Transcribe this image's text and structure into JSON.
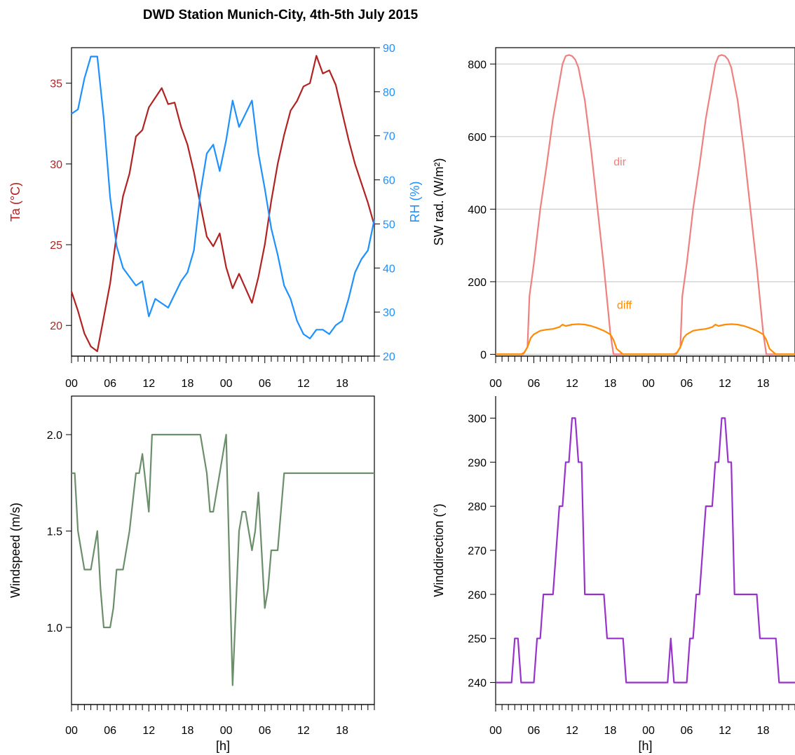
{
  "figure": {
    "title": "DWD Station Munich-City, 4th-5th July 2015"
  },
  "chart_data": [
    {
      "id": "temp-rh",
      "type": "line",
      "x_label": "",
      "x_ticks": [
        "00",
        "06",
        "12",
        "18",
        "00",
        "06",
        "12",
        "18"
      ],
      "x_tick_hours": [
        0,
        6,
        12,
        18,
        24,
        30,
        36,
        42
      ],
      "xlim": [
        0,
        47
      ],
      "y_left": {
        "label": "Ta (°C)",
        "ticks": [
          20,
          25,
          30,
          35
        ],
        "ylim": [
          18.1,
          37.2
        ],
        "color": "#b22222"
      },
      "y_right": {
        "label": "RH (%)",
        "ticks": [
          20,
          30,
          40,
          50,
          60,
          70,
          80,
          90
        ],
        "ylim": [
          20,
          90
        ],
        "color": "#1e90ff"
      },
      "series": [
        {
          "name": "Ta (°C)",
          "axis": "left",
          "color": "#b22222",
          "x": [
            0,
            1,
            2,
            3,
            4,
            5,
            6,
            7,
            8,
            9,
            10,
            11,
            12,
            13,
            14,
            15,
            16,
            17,
            18,
            19,
            20,
            21,
            22,
            23,
            24,
            25,
            26,
            27,
            28,
            29,
            30,
            31,
            32,
            33,
            34,
            35,
            36,
            37,
            38,
            39,
            40,
            41,
            42,
            43,
            44,
            45,
            46,
            47
          ],
          "y": [
            22.1,
            20.9,
            19.5,
            18.7,
            18.4,
            20.5,
            22.6,
            25.6,
            28.0,
            29.4,
            31.7,
            32.1,
            33.5,
            34.1,
            34.7,
            33.7,
            33.8,
            32.3,
            31.2,
            29.5,
            27.5,
            25.5,
            24.9,
            25.7,
            23.6,
            22.3,
            23.2,
            22.3,
            21.4,
            23.0,
            25.0,
            27.7,
            30.0,
            31.8,
            33.3,
            33.9,
            34.8,
            35.0,
            36.7,
            35.6,
            35.8,
            34.9,
            33.2,
            31.5,
            30.0,
            28.8,
            27.6,
            26.2
          ]
        },
        {
          "name": "RH (%)",
          "axis": "right",
          "color": "#1e90ff",
          "x": [
            0,
            1,
            2,
            3,
            4,
            5,
            6,
            7,
            8,
            9,
            10,
            11,
            12,
            13,
            14,
            15,
            16,
            17,
            18,
            19,
            20,
            21,
            22,
            23,
            24,
            25,
            26,
            27,
            28,
            29,
            30,
            31,
            32,
            33,
            34,
            35,
            36,
            37,
            38,
            39,
            40,
            41,
            42,
            43,
            44,
            45,
            46,
            47
          ],
          "y": [
            75,
            76,
            83,
            88,
            88,
            74,
            56,
            45,
            40,
            38,
            36,
            37,
            29,
            33,
            32,
            31,
            34,
            37,
            39,
            44,
            57,
            66,
            68,
            62,
            69,
            78,
            72,
            75,
            78,
            66,
            58,
            49,
            43,
            36,
            33,
            28,
            25,
            24,
            26,
            26,
            25,
            27,
            28,
            33,
            39,
            42,
            44,
            51
          ]
        }
      ]
    },
    {
      "id": "sw-radiation",
      "type": "line",
      "x_label": "",
      "x_ticks": [
        "00",
        "06",
        "12",
        "18",
        "00",
        "06",
        "12",
        "18"
      ],
      "x_tick_hours": [
        0,
        6,
        12,
        18,
        24,
        30,
        36,
        42
      ],
      "xlim": [
        0,
        47
      ],
      "y": {
        "label": "SW rad. (W/m²)",
        "ticks": [
          0,
          200,
          400,
          600,
          800
        ],
        "ylim": [
          -5,
          845
        ],
        "grid": [
          0,
          200,
          400,
          600,
          800
        ]
      },
      "annotations": [
        {
          "text": "dir",
          "x": 19.5,
          "y": 520,
          "color": "#f08080"
        },
        {
          "text": "diff",
          "x": 20.2,
          "y": 125,
          "color": "#ff8c00"
        }
      ],
      "series": [
        {
          "name": "dir",
          "color": "#f08080",
          "x": [
            0,
            4.3,
            5,
            5.3,
            6,
            7,
            8,
            9,
            10,
            10.5,
            11,
            11.5,
            12,
            12.5,
            13,
            14,
            15,
            16,
            17,
            18,
            18.5,
            19,
            20,
            24,
            28.3,
            29,
            29.3,
            30,
            31,
            32,
            33,
            34,
            34.5,
            35,
            35.5,
            36,
            36.5,
            37,
            38,
            39,
            40,
            41,
            42,
            42.5,
            43,
            47
          ],
          "y": [
            0,
            0,
            20,
            160,
            250,
            400,
            520,
            650,
            750,
            800,
            822,
            825,
            822,
            812,
            790,
            700,
            560,
            400,
            240,
            60,
            0,
            0,
            0,
            0,
            0,
            20,
            160,
            250,
            400,
            520,
            650,
            750,
            800,
            822,
            825,
            822,
            812,
            790,
            700,
            560,
            400,
            240,
            60,
            0,
            0,
            0
          ]
        },
        {
          "name": "diff",
          "color": "#ff8c00",
          "x": [
            0,
            4,
            4.5,
            5,
            5.5,
            6,
            7,
            8,
            9,
            10,
            10.5,
            11,
            12,
            13,
            14,
            15,
            16,
            17,
            18,
            18.5,
            19,
            20,
            24,
            28,
            28.5,
            29,
            29.5,
            30,
            31,
            32,
            33,
            34,
            34.5,
            35,
            36,
            37,
            38,
            39,
            40,
            41,
            42,
            42.5,
            43,
            44,
            47
          ],
          "y": [
            0,
            0,
            5,
            20,
            45,
            55,
            65,
            68,
            70,
            75,
            82,
            78,
            82,
            83,
            82,
            78,
            72,
            65,
            55,
            40,
            15,
            0,
            0,
            0,
            5,
            20,
            45,
            55,
            65,
            68,
            70,
            75,
            82,
            78,
            82,
            83,
            82,
            78,
            72,
            65,
            55,
            40,
            15,
            0,
            0
          ]
        }
      ]
    },
    {
      "id": "windspeed",
      "type": "line",
      "x_label": "[h]",
      "x_ticks": [
        "00",
        "06",
        "12",
        "18",
        "00",
        "06",
        "12",
        "18"
      ],
      "x_tick_hours": [
        0,
        6,
        12,
        18,
        24,
        30,
        36,
        42
      ],
      "xlim": [
        0,
        47
      ],
      "y": {
        "label": "Windspeed (m/s)",
        "ticks": [
          1.0,
          1.5,
          2.0
        ],
        "tick_labels": [
          "1.0",
          "1.5",
          "2.0"
        ],
        "ylim": [
          0.6,
          2.2
        ]
      },
      "series": [
        {
          "name": "Windspeed (m/s)",
          "color": "#6b8e6b",
          "x": [
            0,
            0.5,
            1,
            2,
            3,
            4,
            4.5,
            5,
            6,
            6.5,
            7,
            8,
            9,
            10,
            10.5,
            11,
            12,
            12.5,
            13,
            14,
            15,
            16,
            17,
            18,
            19,
            20,
            21,
            21.5,
            22,
            23,
            24,
            25,
            26,
            26.5,
            27,
            28,
            28.5,
            29,
            30,
            30.5,
            31,
            32,
            33,
            34,
            35,
            36,
            37,
            38,
            39,
            40,
            41,
            42,
            43,
            44,
            45,
            46,
            47
          ],
          "y": [
            1.8,
            1.8,
            1.5,
            1.3,
            1.3,
            1.5,
            1.2,
            1.0,
            1.0,
            1.1,
            1.3,
            1.3,
            1.5,
            1.8,
            1.8,
            1.9,
            1.6,
            2.0,
            2.0,
            2.0,
            2.0,
            2.0,
            2.0,
            2.0,
            2.0,
            2.0,
            1.8,
            1.6,
            1.6,
            1.8,
            2.0,
            0.7,
            1.5,
            1.6,
            1.6,
            1.4,
            1.5,
            1.7,
            1.1,
            1.2,
            1.4,
            1.4,
            1.8,
            1.8,
            1.8,
            1.8,
            1.8,
            1.8,
            1.8,
            1.8,
            1.8,
            1.8,
            1.8,
            1.8,
            1.8,
            1.8,
            1.8
          ]
        }
      ]
    },
    {
      "id": "winddirection",
      "type": "line",
      "x_label": "[h]",
      "x_ticks": [
        "00",
        "06",
        "12",
        "18",
        "00",
        "06",
        "12",
        "18"
      ],
      "x_tick_hours": [
        0,
        6,
        12,
        18,
        24,
        30,
        36,
        42
      ],
      "xlim": [
        0,
        47
      ],
      "y": {
        "label": "Winddirection (°)",
        "ticks": [
          240,
          250,
          260,
          270,
          280,
          290,
          300
        ],
        "ylim": [
          235,
          305
        ]
      },
      "series": [
        {
          "name": "Winddirection (°)",
          "color": "#9932cc",
          "x": [
            0,
            2.5,
            3,
            3.5,
            4,
            6,
            6.5,
            7,
            7.5,
            8,
            9,
            10,
            10.5,
            11,
            11.5,
            12,
            12.5,
            13,
            13.5,
            14,
            15,
            16,
            17,
            17.5,
            18,
            19,
            20,
            20.5,
            21,
            22,
            23,
            24,
            25,
            26,
            27,
            27.5,
            28,
            30,
            30.5,
            31,
            31.5,
            32,
            33,
            34,
            34.5,
            35,
            35.5,
            36,
            36.5,
            37,
            37.5,
            38,
            39,
            40,
            41,
            41.5,
            42,
            43,
            44,
            44.5,
            45,
            46,
            47
          ],
          "y": [
            240,
            240,
            250,
            250,
            240,
            240,
            250,
            250,
            260,
            260,
            260,
            280,
            280,
            290,
            290,
            300,
            300,
            290,
            290,
            260,
            260,
            260,
            260,
            250,
            250,
            250,
            250,
            240,
            240,
            240,
            240,
            240,
            240,
            240,
            240,
            250,
            240,
            240,
            250,
            250,
            260,
            260,
            280,
            280,
            290,
            290,
            300,
            300,
            290,
            290,
            260,
            260,
            260,
            260,
            260,
            250,
            250,
            250,
            250,
            240,
            240,
            240,
            240
          ]
        }
      ]
    }
  ]
}
